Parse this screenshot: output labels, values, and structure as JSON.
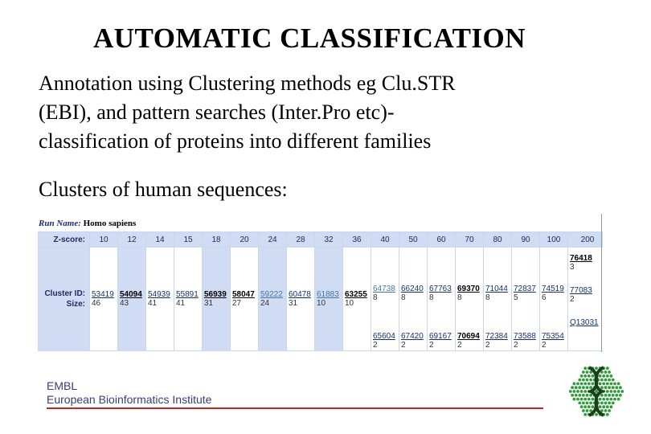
{
  "slide": {
    "title": "AUTOMATIC CLASSIFICATION",
    "para_lines": [
      "Annotation using Clustering methods eg Clu.STR",
      "(EBI), and pattern searches (Inter.Pro etc)-",
      "classification of proteins into different families"
    ],
    "subheading": "Clusters of human sequences:"
  },
  "table": {
    "run_label": "Run Name:",
    "run_value": "Homo sapiens",
    "zscore_label": "Z-score:",
    "cluster_label": "Cluster ID:",
    "size_label": "Size:",
    "zscores": [
      "10",
      "12",
      "14",
      "15",
      "18",
      "20",
      "24",
      "28",
      "32",
      "36",
      "40",
      "50",
      "60",
      "70",
      "80",
      "90",
      "100",
      "200"
    ],
    "single": [
      {
        "id": "53419",
        "size": "46"
      },
      {
        "id": "54094",
        "size": "43"
      },
      {
        "id": "54939",
        "size": "41"
      },
      {
        "id": "55891",
        "size": "41"
      },
      {
        "id": "56939",
        "size": "31"
      },
      {
        "id": "58047",
        "size": "27"
      },
      {
        "id": "59222",
        "size": "24"
      },
      {
        "id": "60478",
        "size": "31"
      },
      {
        "id": "61883",
        "size": "10"
      },
      {
        "id": "63255",
        "size": "10"
      }
    ],
    "stacked": [
      {
        "top": {
          "id": "64738",
          "size": "8"
        },
        "bottom": {
          "id": "65604",
          "size": "2"
        }
      },
      {
        "top": {
          "id": "66240",
          "size": "8"
        },
        "bottom": {
          "id": "67420",
          "size": "2"
        }
      },
      {
        "top": {
          "id": "67763",
          "size": "8"
        },
        "bottom": {
          "id": "69167",
          "size": "2"
        }
      },
      {
        "top": {
          "id": "69370",
          "size": "8"
        },
        "bottom": {
          "id": "70694",
          "size": "2"
        }
      },
      {
        "top": {
          "id": "71044",
          "size": "8"
        },
        "bottom": {
          "id": "72384",
          "size": "2"
        }
      },
      {
        "top": {
          "id": "72837",
          "size": "5"
        },
        "bottom": {
          "id": "73588",
          "size": "2"
        }
      },
      {
        "top": {
          "id": "74519",
          "size": "6"
        },
        "bottom": {
          "id": "75354",
          "size": "2"
        }
      }
    ],
    "last": [
      {
        "id": "76418",
        "size": "3"
      },
      {
        "id": "77083",
        "size": "2"
      },
      {
        "id": "Q13031",
        "size": ""
      }
    ]
  },
  "footer": {
    "org_short": "EMBL",
    "org_full": "European Bioinformatics Institute"
  },
  "colors": {
    "table_header_bg": "#cfdcf3",
    "footer_line": "#cc2222",
    "logo_green": "#2f9b3a"
  }
}
